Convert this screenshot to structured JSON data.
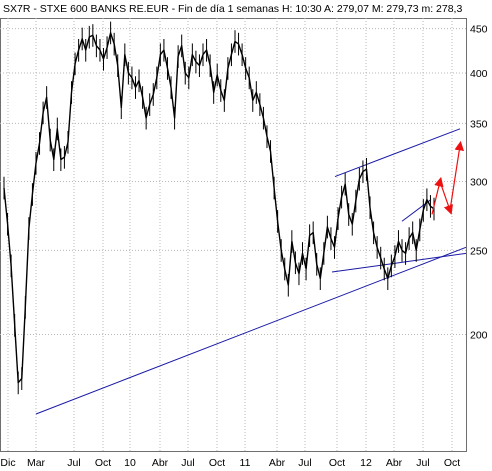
{
  "header": {
    "title_line": "SX7R - STXE 600 BANKS RE.EUR - Fin de día 1 semanas  H: 10:30  A: 279,07  M: 279,73  m: 278,3"
  },
  "chart_data": {
    "type": "ohlc-line",
    "y_axis": {
      "position": "right",
      "scale": "log",
      "ticks": [
        200,
        250,
        300,
        350,
        400,
        450
      ],
      "ylim": [
        155,
        480
      ]
    },
    "x_axis": {
      "tick_labels": [
        "Dic",
        "Mar",
        "Jul",
        "Oct",
        "10",
        "Abr",
        "Jul",
        "Oct",
        "11",
        "Abr",
        "Jul",
        "Oct",
        "12",
        "Abr",
        "Jul",
        "Oct"
      ]
    },
    "grid": true,
    "price_line_color": "#000000",
    "trendline_color": "#1a1aa6",
    "arrow_color": "#ee1111",
    "price_series": [
      295,
      268,
      240,
      205,
      176,
      178,
      215,
      265,
      290,
      315,
      332,
      360,
      375,
      335,
      318,
      345,
      318,
      320,
      333,
      380,
      410,
      425,
      438,
      425,
      440,
      442,
      430,
      425,
      415,
      428,
      445,
      432,
      408,
      365,
      420,
      400,
      395,
      385,
      392,
      375,
      355,
      368,
      378,
      395,
      420,
      425,
      405,
      385,
      355,
      418,
      430,
      400,
      395,
      420,
      412,
      408,
      420,
      425,
      408,
      380,
      398,
      382,
      372,
      405,
      420,
      435,
      432,
      420,
      405,
      395,
      372,
      380,
      368,
      355,
      338,
      325,
      295,
      270,
      250,
      238,
      228,
      256,
      242,
      235,
      248,
      238,
      260,
      262,
      241,
      232,
      248,
      266,
      258,
      252,
      272,
      288,
      298,
      275,
      268,
      285,
      302,
      308,
      310,
      280,
      262,
      252,
      245,
      238,
      232,
      240,
      246,
      256,
      250,
      248,
      258,
      262,
      250,
      264,
      278,
      286,
      281,
      279
    ],
    "trendlines": [
      {
        "from": [
          "Mar",
          162
        ],
        "to": [
          "Oct",
          252
        ]
      },
      {
        "from": [
          "Oct",
          236
        ],
        "to": [
          "Oct",
          248
        ]
      },
      {
        "from": [
          "Abr",
          270
        ],
        "to": [
          "Jul",
          286
        ]
      },
      {
        "from": [
          "Oct",
          304
        ],
        "to": [
          "Oct",
          345
        ]
      }
    ],
    "arrows": [
      {
        "from": 275,
        "to": 300
      },
      {
        "from": 278,
        "to": 330
      }
    ]
  }
}
